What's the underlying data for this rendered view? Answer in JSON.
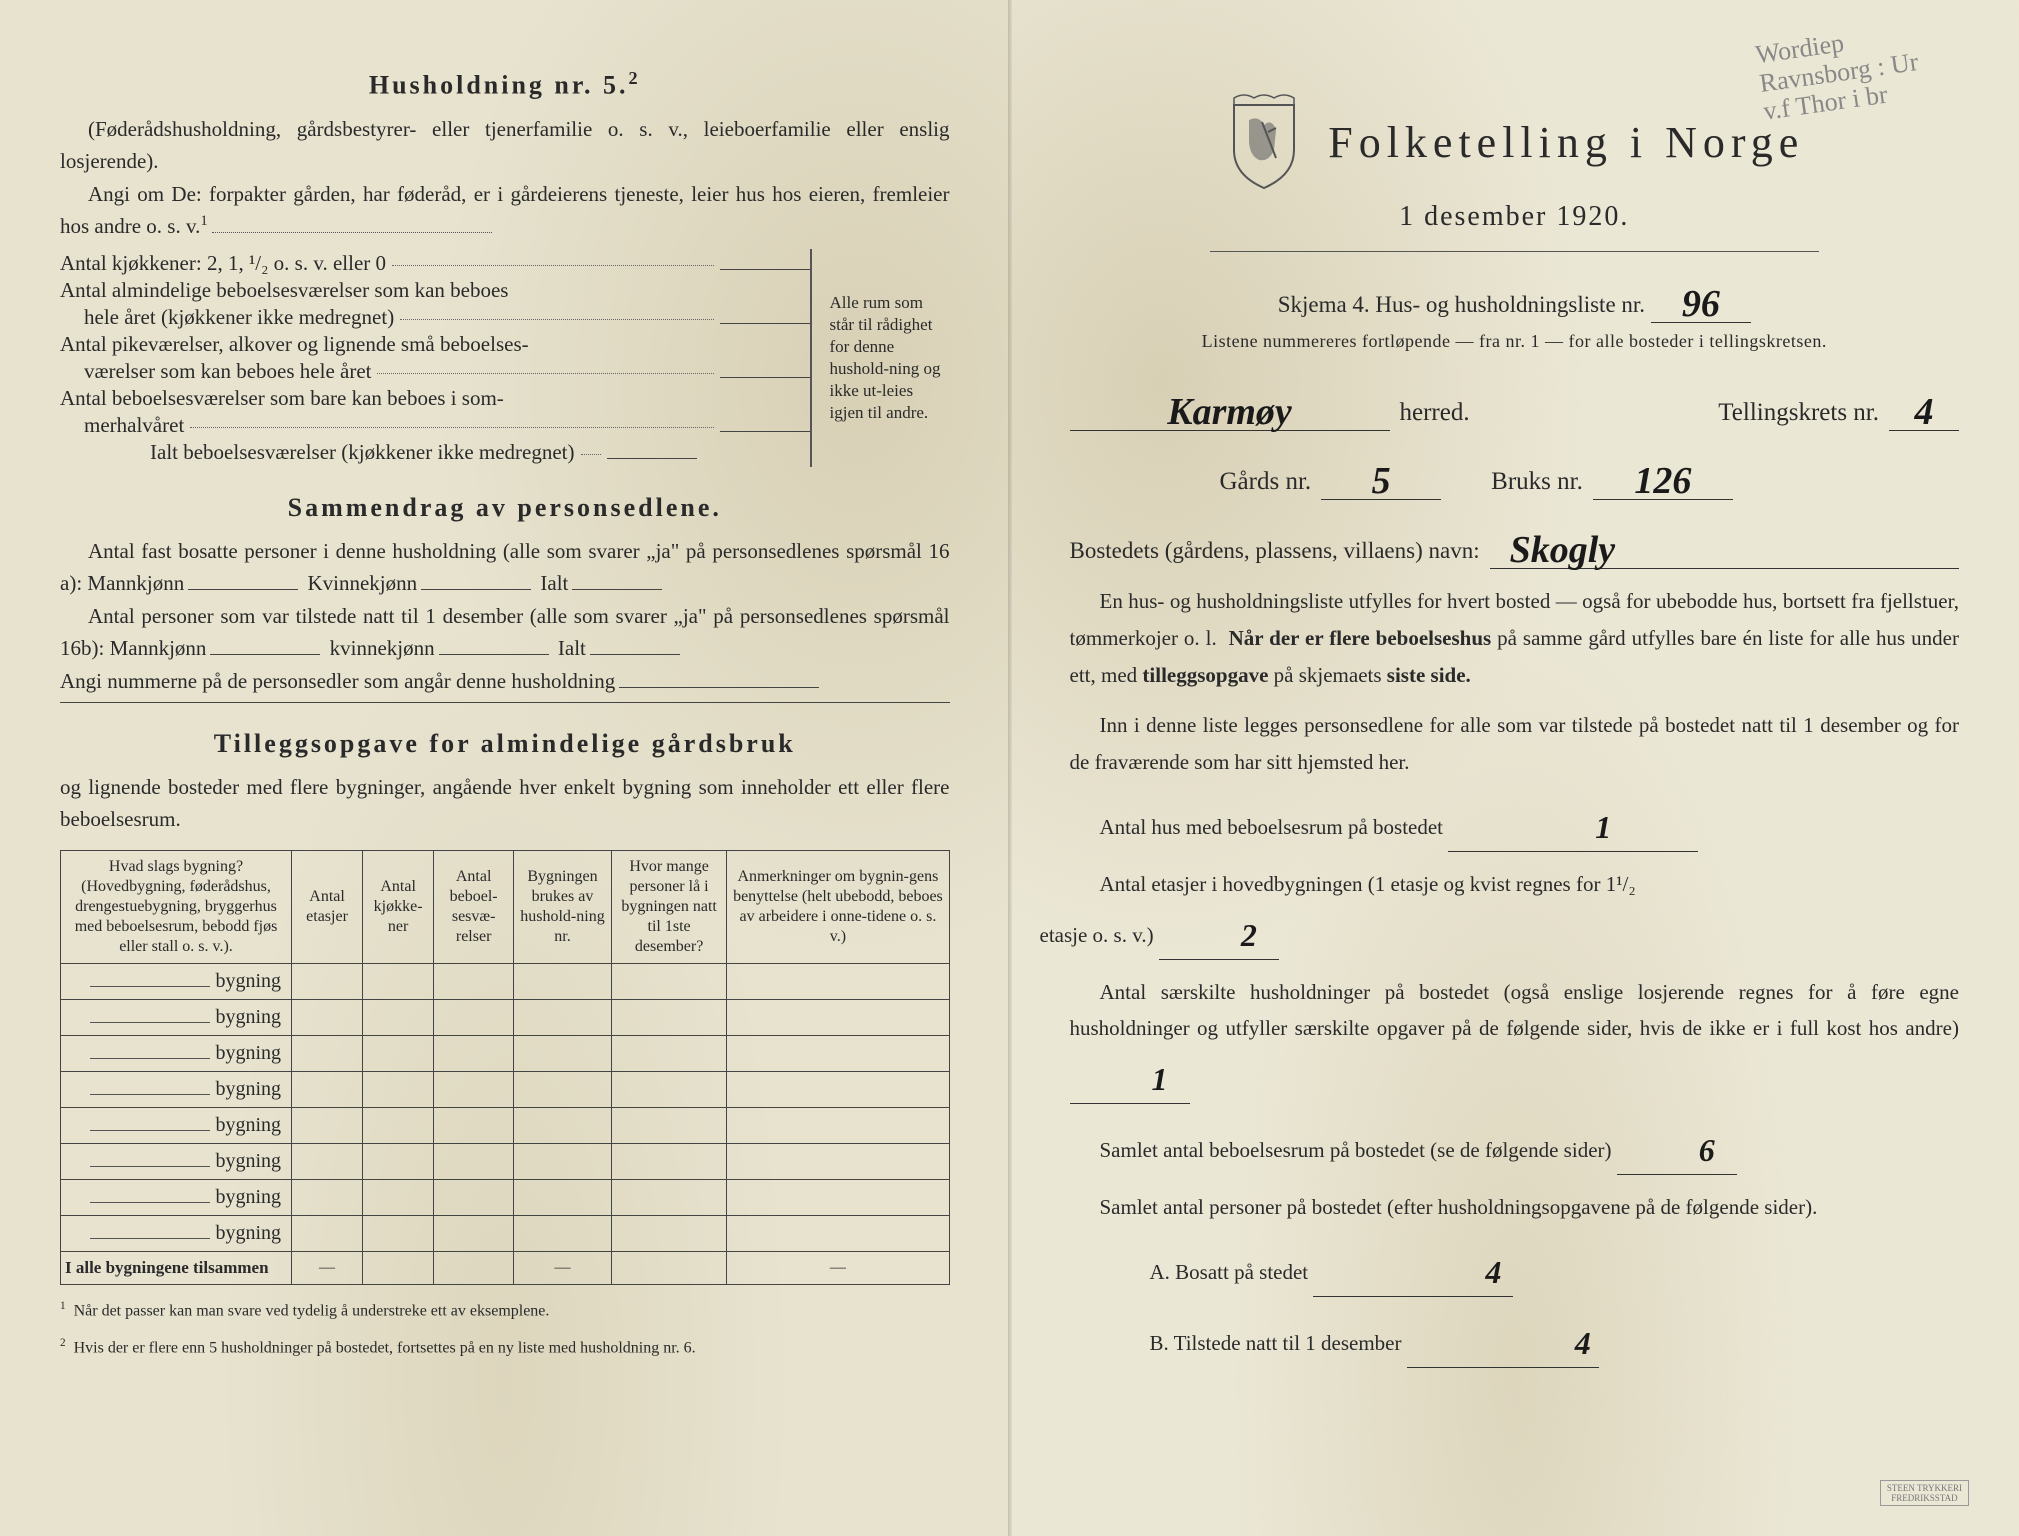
{
  "left": {
    "title1": "Husholdning nr. 5.",
    "title1_sup": "2",
    "intro": "(Føderådshusholdning, gårdsbestyrer- eller tjenerfamilie o. s. v., leieboerfamilie eller enslig losjerende).",
    "angi": "Angi om De:  forpakter gården, har føderåd, er i gårdeierens tjeneste, leier hus hos eieren, fremleier hos andre o. s. v.",
    "angi_sup": "1",
    "rows": {
      "r1": "Antal kjøkkener: 2, 1, ¹/₂ o. s. v. eller 0",
      "r2a": "Antal almindelige beboelsesværelser som kan beboes",
      "r2b": "hele året (kjøkkener ikke medregnet)",
      "r3a": "Antal pikeværelser, alkover og lignende små beboelses-",
      "r3b": "værelser som kan beboes hele året",
      "r4a": "Antal beboelsesværelser som bare kan beboes i som-",
      "r4b": "merhalvåret",
      "r5": "Ialt beboelsesværelser (kjøkkener ikke medregnet)"
    },
    "bracket_note": "Alle rum som står til rådighet for denne hushold-ning og ikke ut-leies igjen til andre.",
    "title2": "Sammendrag av personsedlene.",
    "sam1": "Antal fast bosatte personer i denne husholdning (alle som svarer „ja\" på personsedlenes spørsmål 16 a): Mannkjønn",
    "sam1_k": "Kvinnekjønn",
    "sam1_i": "Ialt",
    "sam2": "Antal personer som var tilstede natt til 1 desember (alle som svarer „ja\" på personsedlenes spørsmål 16b): Mannkjønn",
    "sam2_k": "kvinnekjønn",
    "sam2_i": "Ialt",
    "sam3": "Angi nummerne på de personsedler som angår denne husholdning",
    "title3": "Tilleggsopgave for almindelige gårdsbruk",
    "title3_sub": "og lignende bosteder med flere bygninger, angående hver enkelt bygning som inneholder ett eller flere beboelsesrum.",
    "table": {
      "headers": [
        "Hvad slags bygning?\n(Hovedbygning, føderådshus, drengestuebygning, bryggerhus med beboelsesrum, bebodd fjøs eller stall o. s. v.).",
        "Antal etasjer",
        "Antal kjøkke-ner",
        "Antal beboel-sesvæ-relser",
        "Bygningen brukes av hushold-ning nr.",
        "Hvor mange personer lå i bygningen natt til 1ste desember?",
        "Anmerkninger om bygnin-gens benyttelse (helt ubebodd, beboes av arbeidere i onne-tidene o. s. v.)"
      ],
      "row_label": "bygning",
      "row_count": 8,
      "total_label": "I alle bygningene tilsammen"
    },
    "footnote1_num": "1",
    "footnote1": "Når det passer kan man svare ved tydelig å understreke ett av eksemplene.",
    "footnote2_num": "2",
    "footnote2": "Hvis der er flere enn 5 husholdninger på bostedet, fortsettes på en ny liste med husholdning nr. 6."
  },
  "right": {
    "pencil": "Wordiep\nRavnsborg : Ur\nv.f Thor i br",
    "title": "Folketelling i Norge",
    "date": "1 desember 1920.",
    "skjema": "Skjema 4.  Hus- og husholdningsliste nr.",
    "skjema_nr": "96",
    "note": "Listene nummereres fortløpende — fra nr. 1 — for alle bosteder i tellingskretsen.",
    "herred_value": "Karmøy",
    "herred_label": "herred.",
    "krets_label": "Tellingskrets nr.",
    "krets_value": "4",
    "gards_label": "Gårds nr.",
    "gards_value": "5",
    "bruks_label": "Bruks nr.",
    "bruks_value": "126",
    "bosted_label": "Bostedets (gårdens, plassens, villaens) navn:",
    "bosted_value": "Skogly",
    "p1": "En hus- og husholdningsliste utfylles for hvert bosted — også for ubebodde hus, bortsett fra fjellstuer, tømmerkojer o. l.  Når der er flere beboelseshus på samme gård utfylles bare én liste for alle hus under ett, med tilleggsopgave på skjemaets siste side.",
    "p2": "Inn i denne liste legges personsedlene for alle som var tilstede på bostedet natt til 1 desember og for de fraværende som har sitt hjemsted her.",
    "q1": "Antal hus med beboelsesrum på bostedet",
    "q1_val": "1",
    "q2a": "Antal etasjer i hovedbygningen (1 etasje og kvist regnes for 1¹/₂",
    "q2b": "etasje o. s. v.)",
    "q2_val": "2",
    "q3": "Antal særskilte husholdninger på bostedet (også enslige losjerende regnes for å føre egne husholdninger og utfyller særskilte opgaver på de følgende sider, hvis de ikke er i full kost hos andre)",
    "q3_val": "1",
    "q4": "Samlet antal beboelsesrum på bostedet (se de følgende sider)",
    "q4_val": "6",
    "q5": "Samlet antal personer på bostedet (efter husholdningsopgavene på de følgende sider).",
    "q5a_label": "A.  Bosatt på stedet",
    "q5a_val": "4",
    "q5b_label": "B.  Tilstede natt til 1 desember",
    "q5b_val": "4",
    "stamp": "STEEN TRYKKERI\nFREDRIKSSTAD"
  },
  "colors": {
    "paper": "#e8e4d0",
    "ink": "#2a2a2a",
    "handwriting": "#1a1a1a",
    "pencil": "#888888"
  }
}
